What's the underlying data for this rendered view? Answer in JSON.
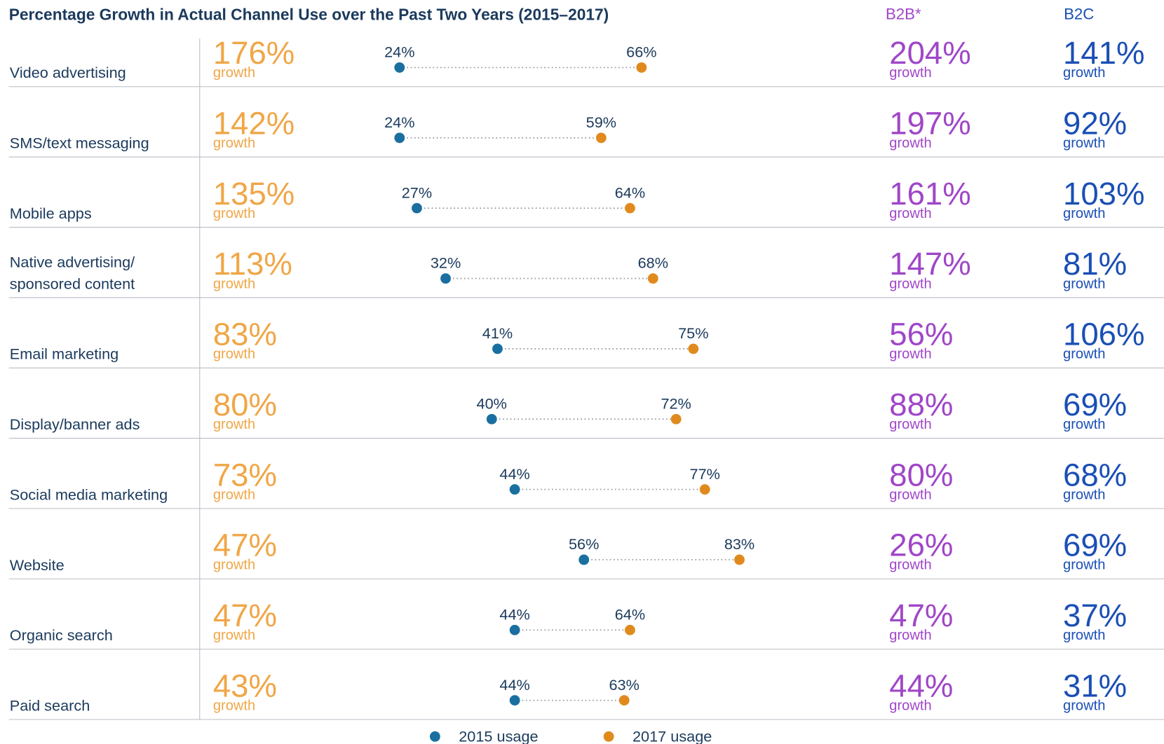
{
  "chart_data": {
    "type": "dumbbell",
    "title": "Percentage Growth in Actual Channel Use over the Past Two Years (2015–2017)",
    "categories": [
      "Video advertising",
      "SMS/text messaging",
      "Mobile apps",
      "Native advertising/\nsponsored content",
      "Email marketing",
      "Display/banner ads",
      "Social media marketing",
      "Website",
      "Organic search",
      "Paid search"
    ],
    "growth_word": "growth",
    "growth": {
      "color": "#f0a646",
      "values": [
        176,
        142,
        135,
        113,
        83,
        80,
        73,
        47,
        47,
        43
      ],
      "value_labels": [
        "176%",
        "142%",
        "135%",
        "113%",
        "83%",
        "80%",
        "73%",
        "47%",
        "47%",
        "43%"
      ]
    },
    "series": [
      {
        "name": "2015 usage",
        "color": "#1a6fa0",
        "values": [
          24,
          24,
          27,
          32,
          41,
          40,
          44,
          56,
          44,
          44
        ],
        "value_labels": [
          "24%",
          "24%",
          "27%",
          "32%",
          "41%",
          "40%",
          "44%",
          "56%",
          "44%",
          "44%"
        ]
      },
      {
        "name": "2017 usage",
        "color": "#e08a1e",
        "values": [
          66,
          59,
          64,
          68,
          75,
          72,
          77,
          83,
          64,
          63
        ],
        "value_labels": [
          "66%",
          "59%",
          "64%",
          "68%",
          "75%",
          "72%",
          "77%",
          "83%",
          "64%",
          "63%"
        ]
      }
    ],
    "segments": [
      {
        "name": "B2B*",
        "color": "#a046c8",
        "values": [
          204,
          197,
          161,
          147,
          56,
          88,
          80,
          26,
          47,
          44
        ],
        "value_labels": [
          "204%",
          "197%",
          "161%",
          "147%",
          "56%",
          "88%",
          "80%",
          "26%",
          "47%",
          "44%"
        ]
      },
      {
        "name": "B2C",
        "color": "#1a4fb5",
        "values": [
          141,
          92,
          103,
          81,
          106,
          69,
          68,
          69,
          37,
          31
        ],
        "value_labels": [
          "141%",
          "92%",
          "103%",
          "81%",
          "106%",
          "69%",
          "68%",
          "69%",
          "37%",
          "31%"
        ]
      }
    ]
  }
}
